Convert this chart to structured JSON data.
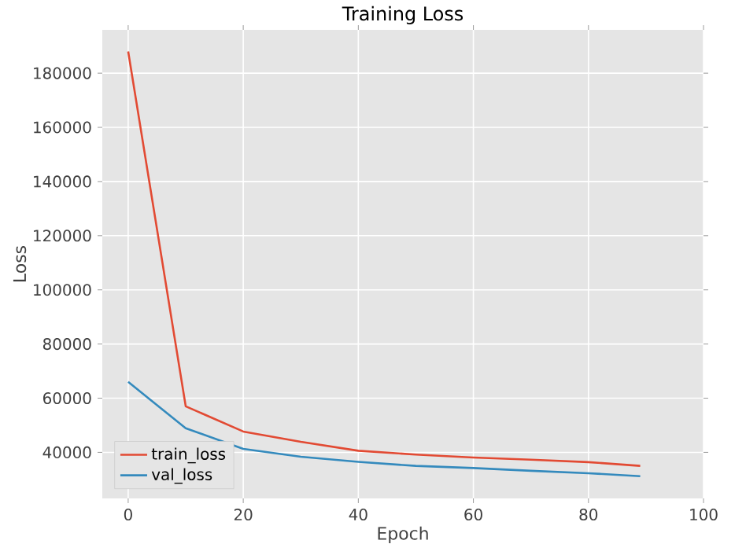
{
  "chart_data": {
    "type": "line",
    "title": "Training Loss",
    "xlabel": "Epoch",
    "ylabel": "Loss",
    "x": [
      0,
      10,
      20,
      30,
      40,
      50,
      60,
      70,
      80,
      89
    ],
    "series": [
      {
        "name": "train_loss",
        "color": "#e24a33",
        "values": [
          188000,
          57000,
          47700,
          43900,
          40600,
          39200,
          38100,
          37300,
          36400,
          35000
        ]
      },
      {
        "name": "val_loss",
        "color": "#348abd",
        "values": [
          66000,
          48900,
          41300,
          38400,
          36500,
          35000,
          34200,
          33200,
          32300,
          31200
        ]
      }
    ],
    "xlim": [
      -4.5,
      100
    ],
    "ylim": [
      23000,
      196000
    ],
    "xticks": [
      0,
      20,
      40,
      60,
      80,
      100
    ],
    "yticks": [
      40000,
      60000,
      80000,
      100000,
      120000,
      140000,
      160000,
      180000
    ],
    "grid": true,
    "legend": "bottom left",
    "marker": "none",
    "line_style": "solid"
  }
}
